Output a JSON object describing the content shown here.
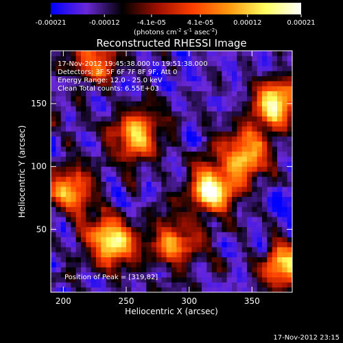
{
  "chart_data": {
    "type": "heatmap",
    "title": "Reconstructed RHESSI Image",
    "xlabel": "Heliocentric X (arcsec)",
    "ylabel": "Heliocentric Y (arcsec)",
    "xlim": [
      190,
      382
    ],
    "ylim": [
      0,
      192
    ],
    "xticks": [
      200,
      250,
      300,
      350
    ],
    "yticks": [
      50,
      100,
      150
    ],
    "colorbar": {
      "unit_label_parts": [
        "(photons cm",
        "-2",
        " s",
        "-1",
        " asec",
        "-2",
        ")"
      ],
      "min": -0.00021,
      "max": 0.00021,
      "ticks": [
        "-0.00021",
        "-0.00012",
        "-4.1e-05",
        "4.1e-05",
        "0.00012",
        "0.00021"
      ],
      "tick_values": [
        -0.00021,
        -0.00012,
        -4.1e-05,
        4.1e-05,
        0.00012,
        0.00021
      ],
      "colormap": [
        "#0000ff",
        "#6a28d8",
        "#000000",
        "#a01000",
        "#ff4000",
        "#ff9a10",
        "#ffff60",
        "#ffffff"
      ]
    },
    "annotations": [
      "17-Nov-2012 19:45:38.000 to 19:51:38.000",
      "Detectors: 3F 5F 6F 7F 8F 9F, Att 0",
      "Energy Range: 12.0 - 25.0 keV",
      "Clean    Total counts: 6.55E+03"
    ],
    "peak_label": "Position of Peak = [319,82]",
    "peak": {
      "x": 319,
      "y": 82
    },
    "grid": false,
    "hotspots": [
      {
        "x": 238,
        "y": 40,
        "value": 0.0002
      },
      {
        "x": 258,
        "y": 125,
        "value": 0.00016
      },
      {
        "x": 319,
        "y": 82,
        "value": 0.00021
      },
      {
        "x": 345,
        "y": 110,
        "value": 0.00015
      },
      {
        "x": 368,
        "y": 150,
        "value": 0.00016
      },
      {
        "x": 376,
        "y": 20,
        "value": 0.00014
      },
      {
        "x": 290,
        "y": 40,
        "value": 8e-05
      },
      {
        "x": 205,
        "y": 80,
        "value": 0.0001
      },
      {
        "x": 225,
        "y": 185,
        "value": 9e-05
      }
    ]
  },
  "footer": {
    "timestamp": "17-Nov-2012 23:15"
  }
}
